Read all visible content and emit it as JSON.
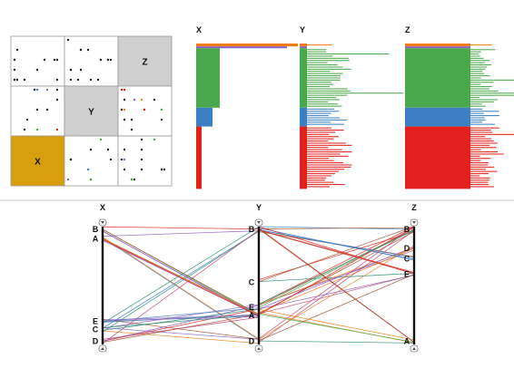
{
  "colors": {
    "highlight_x": "#d99e0b",
    "matrix_gray": "#cfcfcf",
    "orange": "#ef7d16",
    "purple": "#8e5fbf",
    "green": "#4aa84c",
    "blue": "#3c7fc3",
    "red": "#e2211c",
    "axis_black": "#111111",
    "separator": "#cccccc"
  },
  "chart_data": [
    {
      "type": "scatter-matrix",
      "variables": [
        "X",
        "Y",
        "Z"
      ],
      "diagonal_labels": [
        "X",
        "Y",
        "Z"
      ],
      "highlighted_variable": "X"
    },
    {
      "type": "bar",
      "panels": [
        {
          "name": "X",
          "highlighted": true
        },
        {
          "name": "Y",
          "highlighted": false
        },
        {
          "name": "Z",
          "highlighted": false
        }
      ],
      "categories": [
        "B",
        "A",
        "E",
        "C",
        "D"
      ],
      "category_shares": [
        0.02,
        0.01,
        0.41,
        0.13,
        0.43
      ]
    },
    {
      "type": "parallel-sets",
      "axes": [
        {
          "name": "X",
          "highlighted": true,
          "categories": [
            {
              "label": "B",
              "pos": 0.02
            },
            {
              "label": "A",
              "pos": 0.1
            },
            {
              "label": "E",
              "pos": 0.8
            },
            {
              "label": "C",
              "pos": 0.87
            },
            {
              "label": "D",
              "pos": 0.97
            }
          ]
        },
        {
          "name": "Y",
          "highlighted": false,
          "categories": [
            {
              "label": "B",
              "pos": 0.02
            },
            {
              "label": "C",
              "pos": 0.47
            },
            {
              "label": "E",
              "pos": 0.68
            },
            {
              "label": "A",
              "pos": 0.75
            },
            {
              "label": "D",
              "pos": 0.97
            }
          ]
        },
        {
          "name": "Z",
          "highlighted": false,
          "categories": [
            {
              "label": "B",
              "pos": 0.02
            },
            {
              "label": "D",
              "pos": 0.18
            },
            {
              "label": "C",
              "pos": 0.27
            },
            {
              "label": "E",
              "pos": 0.4
            },
            {
              "label": "A",
              "pos": 0.97
            }
          ]
        }
      ]
    }
  ]
}
